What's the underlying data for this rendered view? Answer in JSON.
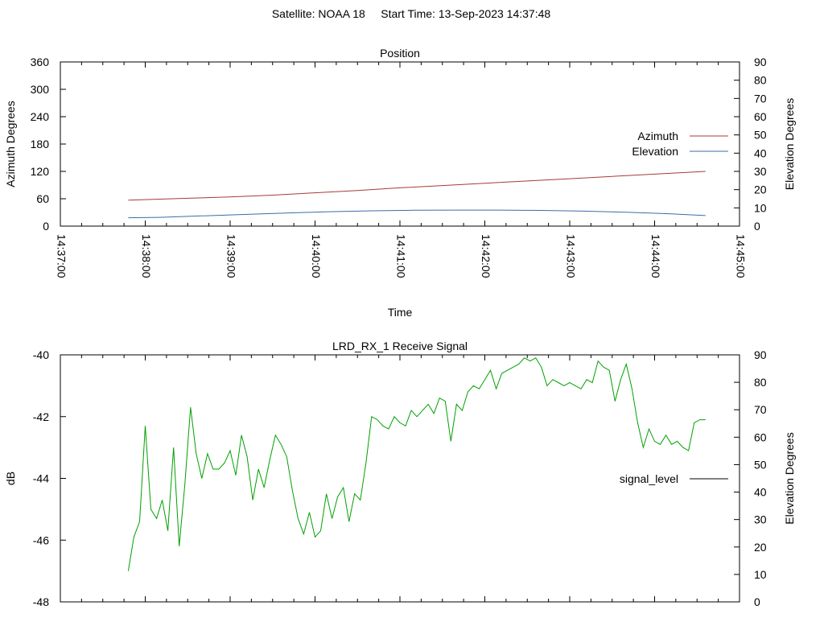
{
  "header": {
    "title": "Satellite: NOAA 18     Start Time: 13-Sep-2023 14:37:48"
  },
  "chart_data": [
    {
      "type": "line",
      "title": "Position",
      "xlabel": "Time",
      "ylabel": "Azimuth Degrees",
      "y2label": "Elevation Degrees",
      "x_ticks": [
        "14:37:00",
        "14:38:00",
        "14:39:00",
        "14:40:00",
        "14:41:00",
        "14:42:00",
        "14:43:00",
        "14:44:00",
        "14:45:00"
      ],
      "xlim": [
        "14:37:00",
        "14:45:00"
      ],
      "ylim": [
        0,
        360
      ],
      "y_ticks": [
        "0",
        "60",
        "120",
        "180",
        "240",
        "300",
        "360"
      ],
      "y2lim": [
        0,
        90
      ],
      "y2_ticks": [
        "0",
        "10",
        "20",
        "30",
        "40",
        "50",
        "60",
        "70",
        "80",
        "90"
      ],
      "grid": false,
      "legend_position": "right",
      "series": [
        {
          "name": "Azimuth",
          "axis": "y",
          "color": "#a83a3a",
          "x": [
            "14:37:48",
            "14:38:30",
            "14:39:00",
            "14:39:30",
            "14:40:00",
            "14:40:30",
            "14:41:00",
            "14:41:30",
            "14:42:00",
            "14:42:30",
            "14:43:00",
            "14:43:30",
            "14:44:00",
            "14:44:36"
          ],
          "y": [
            57,
            61,
            64,
            68,
            73,
            78,
            84,
            89,
            94,
            99,
            104,
            109,
            114,
            120
          ]
        },
        {
          "name": "Elevation",
          "axis": "y2",
          "color": "#3a6ea5",
          "x": [
            "14:37:48",
            "14:38:10",
            "14:38:40",
            "14:39:10",
            "14:39:40",
            "14:40:10",
            "14:40:40",
            "14:41:10",
            "14:41:40",
            "14:42:10",
            "14:42:40",
            "14:43:10",
            "14:43:40",
            "14:44:10",
            "14:44:36"
          ],
          "y": [
            4.6,
            4.8,
            5.6,
            6.4,
            7.2,
            7.9,
            8.4,
            8.7,
            8.8,
            8.8,
            8.6,
            8.2,
            7.6,
            6.8,
            5.8
          ]
        }
      ]
    },
    {
      "type": "line",
      "title": "LRD_RX_1 Receive Signal",
      "xlabel": "",
      "ylabel": "dB",
      "y2label": "Elevation Degrees",
      "xlim": [
        "14:37:00",
        "14:45:00"
      ],
      "ylim": [
        -48,
        -40
      ],
      "y_ticks": [
        "-40",
        "-42",
        "-44",
        "-46",
        "-48"
      ],
      "y2lim": [
        0,
        90
      ],
      "y2_ticks": [
        "0",
        "10",
        "20",
        "30",
        "40",
        "50",
        "60",
        "70",
        "80",
        "90"
      ],
      "grid": false,
      "legend_position": "right",
      "series": [
        {
          "name": "signal_level",
          "axis": "y",
          "color": "#00a000",
          "legend_color": "#000000",
          "x": [
            "14:37:48",
            "14:37:52",
            "14:37:56",
            "14:38:00",
            "14:38:04",
            "14:38:08",
            "14:38:12",
            "14:38:16",
            "14:38:20",
            "14:38:24",
            "14:38:28",
            "14:38:32",
            "14:38:36",
            "14:38:40",
            "14:38:44",
            "14:38:48",
            "14:38:52",
            "14:38:56",
            "14:39:00",
            "14:39:04",
            "14:39:08",
            "14:39:12",
            "14:39:16",
            "14:39:20",
            "14:39:24",
            "14:39:28",
            "14:39:32",
            "14:39:36",
            "14:39:40",
            "14:39:44",
            "14:39:48",
            "14:39:52",
            "14:39:56",
            "14:40:00",
            "14:40:04",
            "14:40:08",
            "14:40:12",
            "14:40:16",
            "14:40:20",
            "14:40:24",
            "14:40:28",
            "14:40:32",
            "14:40:36",
            "14:40:40",
            "14:40:44",
            "14:40:48",
            "14:40:52",
            "14:40:56",
            "14:41:00",
            "14:41:04",
            "14:41:08",
            "14:41:12",
            "14:41:16",
            "14:41:20",
            "14:41:24",
            "14:41:28",
            "14:41:32",
            "14:41:36",
            "14:41:40",
            "14:41:44",
            "14:41:48",
            "14:41:52",
            "14:41:56",
            "14:42:00",
            "14:42:04",
            "14:42:08",
            "14:42:12",
            "14:42:16",
            "14:42:20",
            "14:42:24",
            "14:42:28",
            "14:42:32",
            "14:42:36",
            "14:42:40",
            "14:42:44",
            "14:42:48",
            "14:42:52",
            "14:42:56",
            "14:43:00",
            "14:43:04",
            "14:43:08",
            "14:43:12",
            "14:43:16",
            "14:43:20",
            "14:43:24",
            "14:43:28",
            "14:43:32",
            "14:43:36",
            "14:43:40",
            "14:43:44",
            "14:43:48",
            "14:43:52",
            "14:43:56",
            "14:44:00",
            "14:44:04",
            "14:44:08",
            "14:44:12",
            "14:44:16",
            "14:44:20",
            "14:44:24",
            "14:44:28",
            "14:44:32",
            "14:44:36"
          ],
          "y": [
            -47.0,
            -45.9,
            -45.4,
            -42.3,
            -45.0,
            -45.3,
            -44.7,
            -45.7,
            -43.0,
            -46.2,
            -44.2,
            -41.7,
            -43.2,
            -44.0,
            -43.2,
            -43.7,
            -43.7,
            -43.5,
            -43.1,
            -43.9,
            -42.6,
            -43.3,
            -44.7,
            -43.7,
            -44.3,
            -43.4,
            -42.6,
            -42.9,
            -43.3,
            -44.4,
            -45.3,
            -45.8,
            -45.1,
            -45.9,
            -45.7,
            -44.5,
            -45.3,
            -44.6,
            -44.3,
            -45.4,
            -44.5,
            -44.7,
            -43.5,
            -42.0,
            -42.1,
            -42.3,
            -42.4,
            -42.0,
            -42.2,
            -42.3,
            -41.8,
            -42.0,
            -41.8,
            -41.6,
            -41.9,
            -41.4,
            -41.5,
            -42.8,
            -41.6,
            -41.8,
            -41.2,
            -41.0,
            -41.1,
            -40.8,
            -40.5,
            -41.1,
            -40.6,
            -40.5,
            -40.4,
            -40.3,
            -40.1,
            -40.2,
            -40.1,
            -40.4,
            -41.0,
            -40.8,
            -40.9,
            -41.0,
            -40.9,
            -41.0,
            -41.1,
            -40.8,
            -40.9,
            -40.2,
            -40.4,
            -40.5,
            -41.5,
            -40.8,
            -40.3,
            -41.1,
            -42.2,
            -43.0,
            -42.4,
            -42.8,
            -42.9,
            -42.6,
            -42.9,
            -42.8,
            -43.0,
            -43.1,
            -42.2,
            -42.1,
            -42.1
          ]
        }
      ]
    }
  ]
}
